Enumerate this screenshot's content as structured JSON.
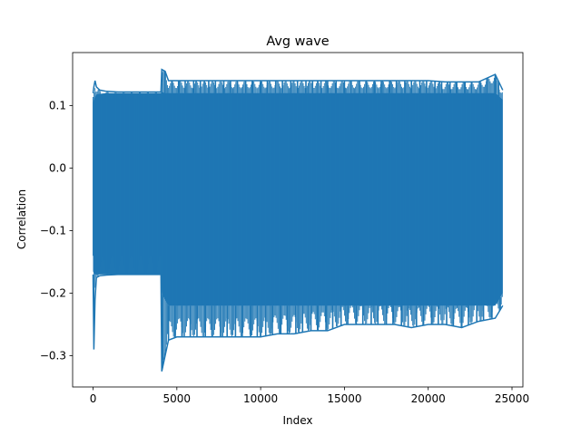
{
  "chart_data": {
    "type": "line",
    "title": "Avg wave",
    "xlabel": "Index",
    "ylabel": "Correlation",
    "xlim": [
      -1220,
      25650
    ],
    "ylim": [
      -0.35,
      0.185
    ],
    "grid": false,
    "legend": "none",
    "series": [
      {
        "color": "#1f77b4",
        "samples_shown": 24450,
        "envelope": {
          "x": [
            0,
            50,
            120,
            200,
            400,
            800,
            1500,
            2500,
            3500,
            4050,
            4100,
            4300,
            4500,
            5000,
            6000,
            7000,
            8000,
            9000,
            10000,
            11000,
            12000,
            13000,
            14000,
            15000,
            16000,
            17000,
            18000,
            19000,
            20000,
            21000,
            22000,
            23000,
            24000,
            24450
          ],
          "upper": [
            0.12,
            0.13,
            0.14,
            0.13,
            0.125,
            0.123,
            0.122,
            0.122,
            0.122,
            0.122,
            0.158,
            0.155,
            0.14,
            0.14,
            0.14,
            0.14,
            0.14,
            0.14,
            0.14,
            0.14,
            0.14,
            0.14,
            0.14,
            0.14,
            0.14,
            0.14,
            0.14,
            0.14,
            0.14,
            0.138,
            0.138,
            0.138,
            0.15,
            0.125
          ],
          "lower": [
            -0.17,
            -0.29,
            -0.21,
            -0.175,
            -0.172,
            -0.171,
            -0.17,
            -0.17,
            -0.17,
            -0.17,
            -0.325,
            -0.3,
            -0.275,
            -0.27,
            -0.27,
            -0.27,
            -0.27,
            -0.27,
            -0.27,
            -0.265,
            -0.265,
            -0.26,
            -0.26,
            -0.25,
            -0.25,
            -0.25,
            -0.25,
            -0.255,
            -0.25,
            -0.25,
            -0.255,
            -0.245,
            -0.24,
            -0.22
          ]
        },
        "fill_band": {
          "upper": [
            0.105,
            0.11,
            0.115,
            0.118,
            0.119,
            0.12,
            0.12,
            0.12,
            0.12,
            0.12,
            0.122,
            0.12,
            0.12,
            0.12,
            0.12,
            0.12,
            0.12,
            0.12,
            0.12,
            0.12,
            0.12,
            0.12,
            0.12,
            0.12,
            0.12,
            0.12,
            0.12,
            0.12,
            0.12,
            0.12,
            0.12,
            0.12,
            0.12,
            0.11
          ],
          "lower": [
            -0.165,
            -0.168,
            -0.17,
            -0.17,
            -0.17,
            -0.17,
            -0.17,
            -0.17,
            -0.17,
            -0.17,
            -0.2,
            -0.21,
            -0.22,
            -0.22,
            -0.22,
            -0.22,
            -0.22,
            -0.22,
            -0.22,
            -0.22,
            -0.22,
            -0.22,
            -0.22,
            -0.22,
            -0.22,
            -0.22,
            -0.22,
            -0.22,
            -0.22,
            -0.22,
            -0.22,
            -0.22,
            -0.22,
            -0.2
          ]
        },
        "upper_spikes_x": [
          4300,
          4700,
          5100,
          5500,
          6000,
          6400,
          6900,
          7300,
          7800,
          8200,
          8600,
          9100,
          9500,
          10000,
          10400,
          10900,
          11300,
          11800,
          12200,
          12700,
          13100,
          13600,
          14000,
          14500,
          15000,
          15400,
          15900,
          16300,
          16800,
          17200,
          17700,
          18100,
          18600,
          19000,
          19500,
          19900,
          20400,
          20800,
          21300,
          21700,
          22200,
          22600,
          23100,
          23500,
          24000,
          24200
        ],
        "lower_spikes_x": [
          4150,
          4500,
          4900,
          5300,
          5800,
          6200,
          6700,
          7100,
          7600,
          8000,
          8500,
          8900,
          9400,
          9800,
          10300,
          10700,
          11200,
          11600,
          12100,
          12500,
          13000,
          13400,
          13900,
          14300,
          14800,
          15200,
          15700,
          16100,
          16600,
          17000,
          17500,
          17900,
          18400,
          18800,
          19300,
          19700,
          20200,
          20600,
          21100,
          21500,
          22000,
          22400,
          22900,
          23300,
          23800,
          24300
        ]
      }
    ],
    "xticks": [
      0,
      5000,
      10000,
      15000,
      20000,
      25000
    ],
    "yticks": [
      -0.3,
      -0.2,
      -0.1,
      0.0,
      0.1
    ],
    "xtick_labels": [
      "0",
      "5000",
      "10000",
      "15000",
      "20000",
      "25000"
    ],
    "ytick_labels": [
      "−0.3",
      "−0.2",
      "−0.1",
      "0.0",
      "0.1"
    ]
  }
}
